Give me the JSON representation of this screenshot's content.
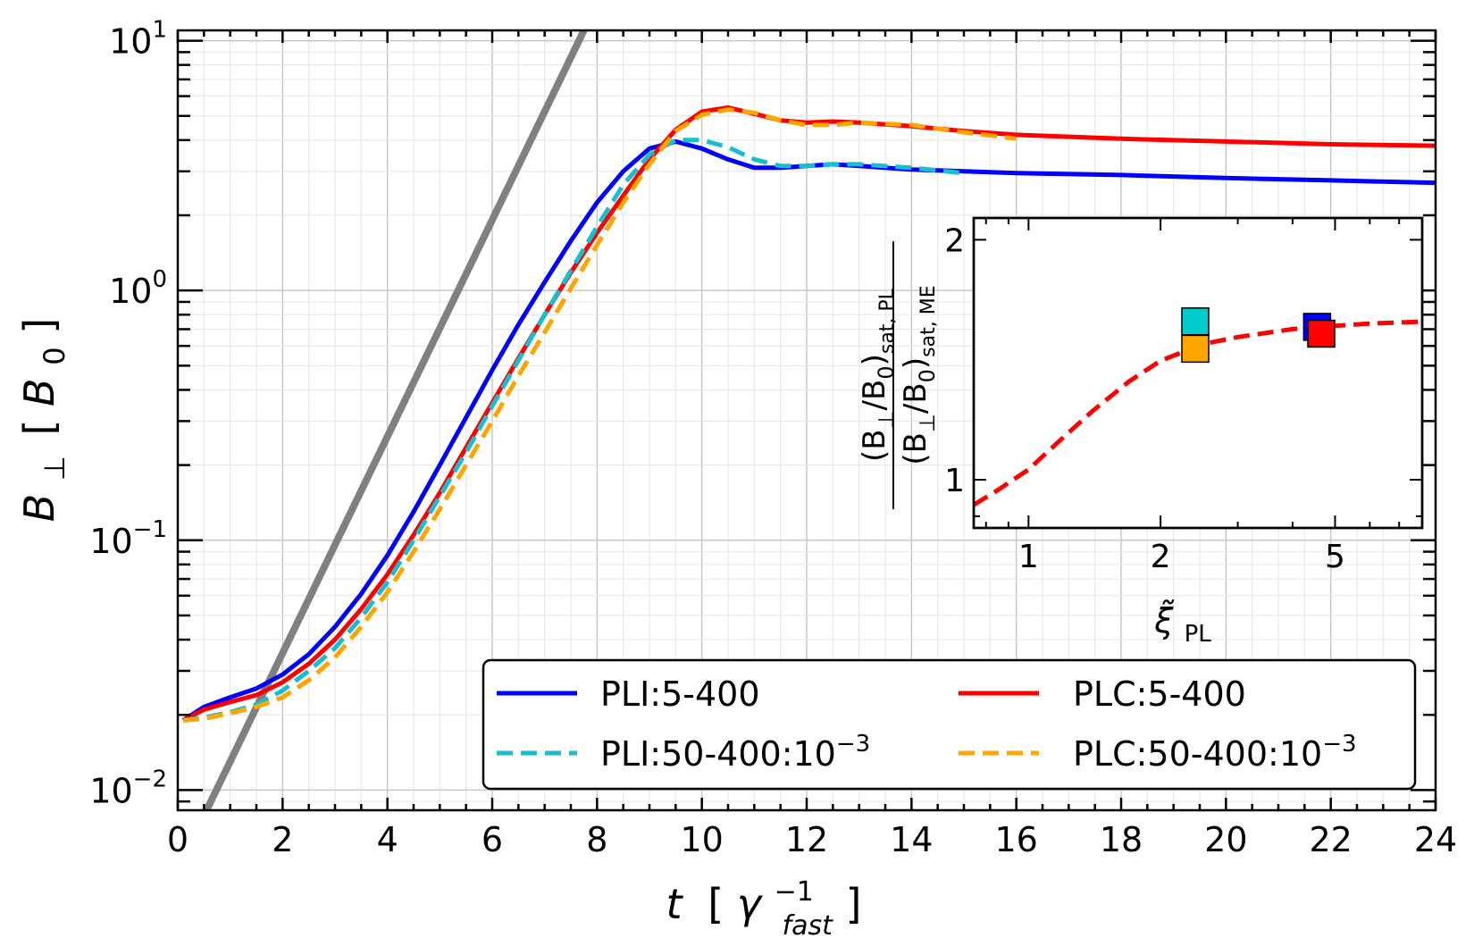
{
  "chart_data": [
    {
      "type": "line",
      "role": "main",
      "xscale": "linear",
      "yscale": "log",
      "xlim": [
        0,
        24
      ],
      "ylim": [
        0.0083,
        11
      ],
      "xticks": [
        "0",
        "2",
        "4",
        "6",
        "8",
        "10",
        "12",
        "14",
        "16",
        "18",
        "20",
        "22",
        "24"
      ],
      "yticks": [
        {
          "value": 0.01,
          "base": "10",
          "exp": "−2"
        },
        {
          "value": 0.1,
          "base": "10",
          "exp": "−1"
        },
        {
          "value": 1,
          "base": "10",
          "exp": "0"
        },
        {
          "value": 10,
          "base": "10",
          "exp": "1"
        }
      ],
      "xlabel": {
        "var": "t",
        "open": "[",
        "sym": "γ",
        "sup": "−1",
        "sub": "fast",
        "close": "]"
      },
      "ylabel": {
        "var": "B",
        "sub": "⊥",
        "open": "[",
        "unit": "B",
        "unit_sub": "0",
        "close": "]"
      },
      "grid": true,
      "reference_line": {
        "color": "#808080",
        "x": [
          0.55,
          7.75
        ],
        "y": [
          0.0083,
          11
        ]
      },
      "series": [
        {
          "name": "PLI:5-400",
          "color": "#0000ff",
          "dash": false,
          "x": [
            0.1,
            0.5,
            1,
            1.5,
            2,
            2.5,
            3,
            3.5,
            4,
            4.5,
            5,
            5.5,
            6,
            6.5,
            7,
            7.5,
            8,
            8.5,
            9,
            9.5,
            10,
            10.5,
            11,
            11.5,
            12,
            12.5,
            13,
            14,
            15,
            16,
            18,
            20,
            22,
            24
          ],
          "y": [
            0.019,
            0.0215,
            0.0235,
            0.0255,
            0.029,
            0.035,
            0.045,
            0.061,
            0.087,
            0.13,
            0.2,
            0.31,
            0.48,
            0.73,
            1.08,
            1.58,
            2.25,
            3.0,
            3.7,
            3.95,
            3.7,
            3.35,
            3.1,
            3.1,
            3.15,
            3.2,
            3.15,
            3.05,
            3.0,
            2.95,
            2.9,
            2.82,
            2.76,
            2.7
          ]
        },
        {
          "name": "PLC:5-400",
          "color": "#ff0000",
          "dash": false,
          "x": [
            0.1,
            0.5,
            1,
            1.5,
            2,
            2.5,
            3,
            3.5,
            4,
            4.5,
            5,
            5.5,
            6,
            6.5,
            7,
            7.5,
            8,
            8.5,
            9,
            9.5,
            10,
            10.5,
            11,
            11.5,
            12,
            12.5,
            13,
            14,
            15,
            16,
            18,
            20,
            22,
            24
          ],
          "y": [
            0.019,
            0.021,
            0.0225,
            0.024,
            0.027,
            0.032,
            0.04,
            0.053,
            0.073,
            0.105,
            0.155,
            0.235,
            0.355,
            0.535,
            0.8,
            1.18,
            1.7,
            2.4,
            3.35,
            4.4,
            5.2,
            5.4,
            5.1,
            4.8,
            4.7,
            4.75,
            4.7,
            4.55,
            4.35,
            4.2,
            4.05,
            3.95,
            3.85,
            3.8
          ]
        },
        {
          "name": "PLI:50-400:10",
          "sup": "−3",
          "color": "#17becf",
          "dash": true,
          "x": [
            0.1,
            0.5,
            1,
            1.5,
            2,
            2.5,
            3,
            3.5,
            4,
            4.5,
            5,
            5.5,
            6,
            6.5,
            7,
            7.5,
            8,
            8.5,
            9,
            9.5,
            10,
            10.5,
            11,
            11.5,
            12,
            12.5,
            13,
            14,
            15
          ],
          "y": [
            0.019,
            0.0195,
            0.0205,
            0.022,
            0.025,
            0.03,
            0.037,
            0.049,
            0.068,
            0.1,
            0.15,
            0.225,
            0.345,
            0.525,
            0.8,
            1.2,
            1.8,
            2.65,
            3.5,
            4.0,
            4.0,
            3.75,
            3.35,
            3.15,
            3.15,
            3.2,
            3.2,
            3.1,
            2.95
          ]
        },
        {
          "name": "PLC:50-400:10",
          "sup": "−3",
          "color": "#ffa500",
          "dash": true,
          "x": [
            0.1,
            0.5,
            1,
            1.5,
            2,
            2.5,
            3,
            3.5,
            4,
            4.5,
            5,
            5.5,
            6,
            6.5,
            7,
            7.5,
            8,
            8.5,
            9,
            9.5,
            10,
            10.5,
            11,
            11.5,
            12,
            12.5,
            13,
            14,
            15,
            16
          ],
          "y": [
            0.019,
            0.0193,
            0.0203,
            0.0215,
            0.0235,
            0.0275,
            0.034,
            0.045,
            0.062,
            0.09,
            0.133,
            0.2,
            0.3,
            0.455,
            0.68,
            1.02,
            1.52,
            2.25,
            3.2,
            4.35,
            5.05,
            5.3,
            5.15,
            4.8,
            4.6,
            4.6,
            4.7,
            4.6,
            4.3,
            4.05
          ]
        }
      ],
      "legend": {
        "placement": "lower-right",
        "ncol": 2
      }
    },
    {
      "type": "scatter",
      "role": "inset",
      "xscale": "log",
      "yscale": "log",
      "xlim": [
        0.75,
        7.9
      ],
      "ylim": [
        0.87,
        2.13
      ],
      "xticks": [
        {
          "value": 1,
          "label": "1"
        },
        {
          "value": 2,
          "label": "2"
        },
        {
          "value": 5,
          "label": "5"
        }
      ],
      "yticks": [
        {
          "value": 1,
          "label": "1"
        },
        {
          "value": 2,
          "label": "2"
        }
      ],
      "xlabel": {
        "sym": "ξ̃",
        "sub": "PL"
      },
      "ylabel": {
        "num": "(B",
        "num_sub1": "⊥",
        "num_mid": "/B",
        "num_sub2": "0",
        "num_close": ")",
        "num_sub3": "sat, PL",
        "den": "(B",
        "den_sub1": "⊥",
        "den_mid": "/B",
        "den_sub2": "0",
        "den_close": ")",
        "den_sub3": "sat, ME"
      },
      "fit_curve": {
        "color": "#ff0000",
        "dash": true,
        "x": [
          0.75,
          0.85,
          1.0,
          1.2,
          1.4,
          1.7,
          2.0,
          2.5,
          3.0,
          4.0,
          5.0,
          6.0,
          7.0,
          7.8
        ],
        "y": [
          0.93,
          0.97,
          1.03,
          1.13,
          1.22,
          1.33,
          1.41,
          1.48,
          1.51,
          1.545,
          1.56,
          1.57,
          1.575,
          1.578
        ]
      },
      "points": [
        {
          "x": 2.4,
          "y": 1.58,
          "color": "#00cccc"
        },
        {
          "x": 2.4,
          "y": 1.46,
          "color": "#ffa500"
        },
        {
          "x": 4.55,
          "y": 1.555,
          "color": "#0000ff"
        },
        {
          "x": 4.65,
          "y": 1.525,
          "color": "#ff0000"
        }
      ]
    }
  ]
}
